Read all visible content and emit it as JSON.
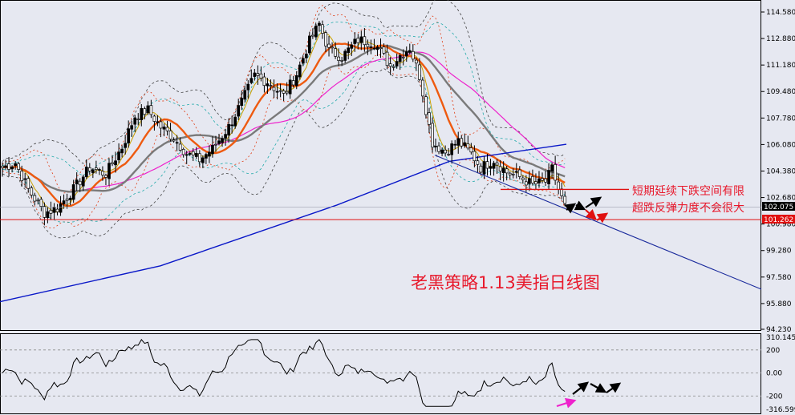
{
  "annotations": {
    "main_title": "老黑策略1.13美指日线图",
    "note_line_1": "短期延续下跌空间有限",
    "note_line_2": "超跌反弹力度不会很大"
  },
  "price_tags": {
    "current": "102.075",
    "support": "101.262"
  },
  "colors": {
    "background": "#e6e8f1",
    "candle_up": "#000000",
    "candle_down": "#ffffff",
    "ma_orange": "#ee5a10",
    "ma_gray": "#7a7a7a",
    "ma_magenta": "#ee22cc",
    "long_ma_blue": "#0a18c8",
    "trendline_blue": "#1a2a9c",
    "support_red": "#e01010",
    "note_red": "#e8192c",
    "arrow_black": "#000000",
    "arrow_red": "#e01010",
    "arrow_pink": "#ee22cc"
  },
  "chart_data": [
    {
      "type": "candlestick",
      "title": "老黑策略1.13美指日线图",
      "yticks": [
        "114.580",
        "112.880",
        "111.180",
        "109.480",
        "107.780",
        "106.080",
        "104.380",
        "102.680",
        "100.980",
        "99.280",
        "97.580",
        "95.880",
        "94.230"
      ],
      "ylim": [
        94.23,
        115.2
      ],
      "bars": 175,
      "ohlc_sample": {
        "start_close": 104.6,
        "low_near_bar_13": 101.7,
        "peak_near_bar_79": 114.6,
        "last_close": 102.075
      },
      "horizontal_levels": [
        {
          "price": 101.262,
          "label": "101.262",
          "color": "red"
        },
        {
          "price": 103.2,
          "label": "",
          "color": "red"
        }
      ],
      "overlays": [
        "bollinger bands",
        "moving averages",
        "descending trendline"
      ],
      "grid": false
    },
    {
      "type": "line",
      "oscillator": true,
      "yticks": [
        "310.145",
        "200",
        "0.00",
        "-200",
        "-316.599"
      ],
      "ylim": [
        -316.599,
        310.145
      ],
      "reference_levels": [
        200,
        0,
        -200
      ]
    }
  ]
}
